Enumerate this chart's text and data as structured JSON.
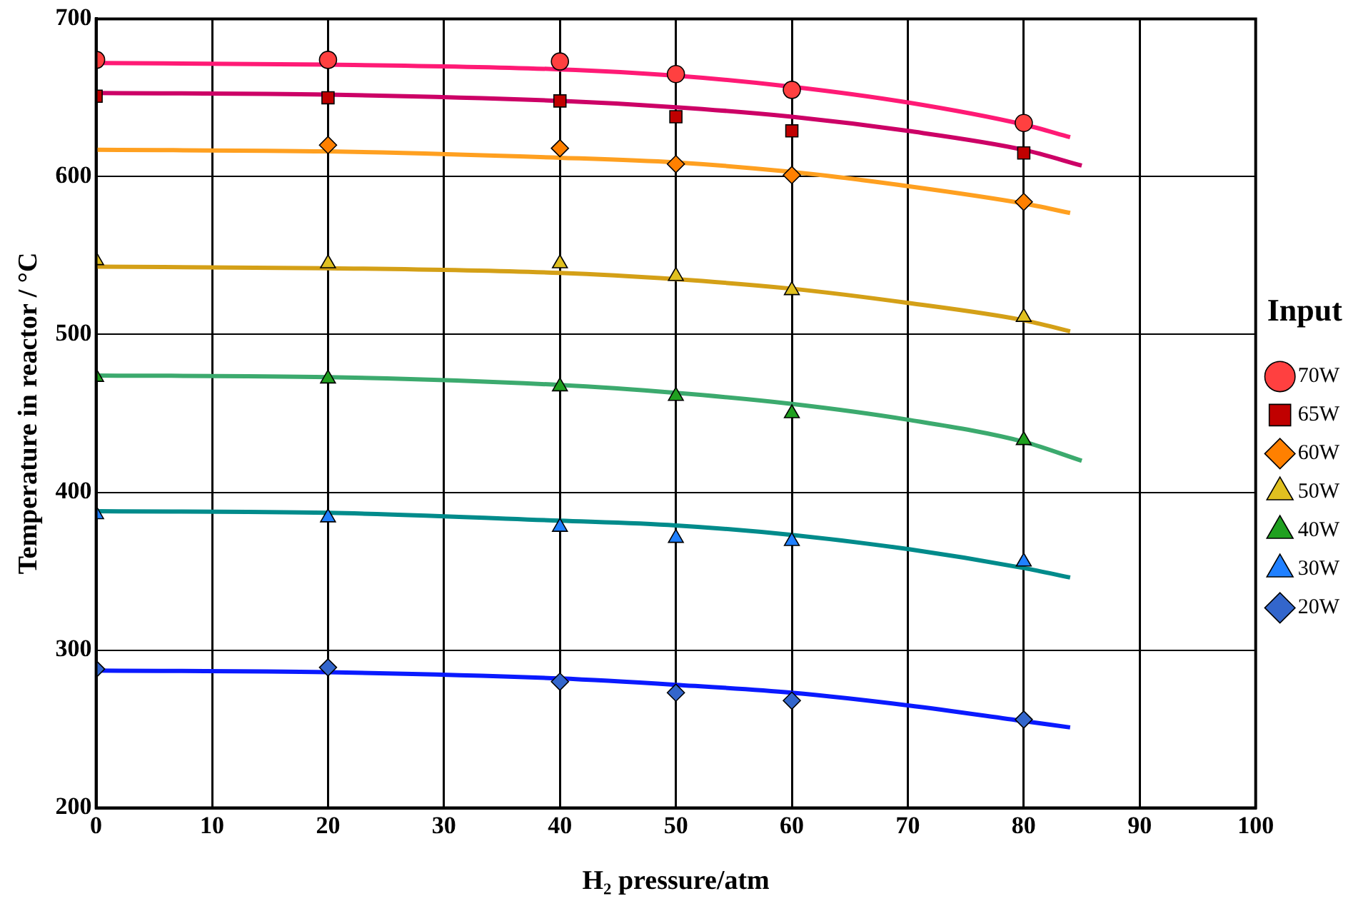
{
  "chart_data": {
    "type": "scatter",
    "xlabel": "H₂ pressure/atm",
    "ylabel": "Temperature in reactor / °C",
    "legend_title": "Input",
    "legend": "right",
    "grid": true,
    "xlim": [
      0,
      100
    ],
    "xticks": [
      0,
      10,
      20,
      30,
      40,
      50,
      60,
      70,
      80,
      90,
      100
    ],
    "ylim": [
      200,
      700
    ],
    "yticks": [
      200,
      300,
      400,
      500,
      600,
      700
    ],
    "series": [
      {
        "name": "70W",
        "type": "scatter",
        "marker": "circle",
        "color": "#ff4040",
        "x": [
          0,
          20,
          40,
          50,
          60,
          80
        ],
        "values": [
          674,
          674,
          673,
          665,
          655,
          634
        ]
      },
      {
        "name": "65W",
        "type": "scatter",
        "marker": "square",
        "color": "#c00000",
        "x": [
          0,
          20,
          40,
          50,
          60,
          80
        ],
        "values": [
          651,
          650,
          648,
          638,
          629,
          615
        ]
      },
      {
        "name": "60W",
        "type": "scatter",
        "marker": "diamond",
        "color": "#ff8000",
        "x": [
          20,
          40,
          50,
          60,
          80
        ],
        "values": [
          620,
          618,
          608,
          601,
          584
        ]
      },
      {
        "name": "50W",
        "type": "scatter",
        "marker": "triangle",
        "color": "#e0c020",
        "x": [
          0,
          20,
          40,
          50,
          60,
          80
        ],
        "values": [
          547,
          545,
          545,
          537,
          528,
          511
        ]
      },
      {
        "name": "40W",
        "type": "scatter",
        "marker": "triangle",
        "color": "#20a020",
        "x": [
          0,
          20,
          40,
          50,
          60,
          80
        ],
        "values": [
          473,
          472,
          467,
          461,
          450,
          433
        ]
      },
      {
        "name": "30W",
        "type": "scatter",
        "marker": "triangle",
        "color": "#2080ff",
        "x": [
          0,
          20,
          40,
          50,
          60,
          80
        ],
        "values": [
          386,
          384,
          378,
          371,
          369,
          356
        ]
      },
      {
        "name": "20W",
        "type": "scatter",
        "marker": "diamond",
        "color": "#3366cc",
        "x": [
          0,
          20,
          40,
          50,
          60,
          80
        ],
        "values": [
          288,
          289,
          280,
          273,
          268,
          256
        ]
      },
      {
        "type": "line",
        "marker": "none",
        "color": "#ff1a75",
        "x": [
          0,
          20,
          40,
          50,
          60,
          70,
          80,
          84
        ],
        "values": [
          672,
          671,
          668,
          664,
          657,
          647,
          633,
          625
        ]
      },
      {
        "type": "line",
        "marker": "none",
        "color": "#cc0066",
        "x": [
          0,
          20,
          40,
          50,
          60,
          70,
          80,
          85
        ],
        "values": [
          653,
          652,
          648,
          644,
          638,
          629,
          617,
          607
        ]
      },
      {
        "type": "line",
        "marker": "none",
        "color": "#ffa020",
        "x": [
          0,
          20,
          40,
          50,
          60,
          70,
          80,
          84
        ],
        "values": [
          617,
          616,
          612,
          609,
          603,
          594,
          583,
          577
        ]
      },
      {
        "type": "line",
        "marker": "none",
        "color": "#d4a017",
        "x": [
          0,
          20,
          40,
          50,
          60,
          70,
          80,
          84
        ],
        "values": [
          543,
          542,
          539,
          535,
          529,
          520,
          509,
          502
        ]
      },
      {
        "type": "line",
        "marker": "none",
        "color": "#3caa6e",
        "x": [
          0,
          20,
          40,
          50,
          60,
          70,
          80,
          85
        ],
        "values": [
          474,
          473,
          468,
          463,
          456,
          446,
          432,
          420
        ]
      },
      {
        "type": "line",
        "marker": "none",
        "color": "#008b8b",
        "x": [
          0,
          20,
          40,
          50,
          60,
          70,
          80,
          84
        ],
        "values": [
          388,
          387,
          382,
          379,
          373,
          364,
          352,
          346
        ]
      },
      {
        "type": "line",
        "marker": "none",
        "color": "#0a1aff",
        "x": [
          0,
          20,
          40,
          50,
          60,
          70,
          80,
          84
        ],
        "values": [
          287,
          286,
          282,
          278,
          273,
          265,
          255,
          251
        ]
      }
    ]
  }
}
